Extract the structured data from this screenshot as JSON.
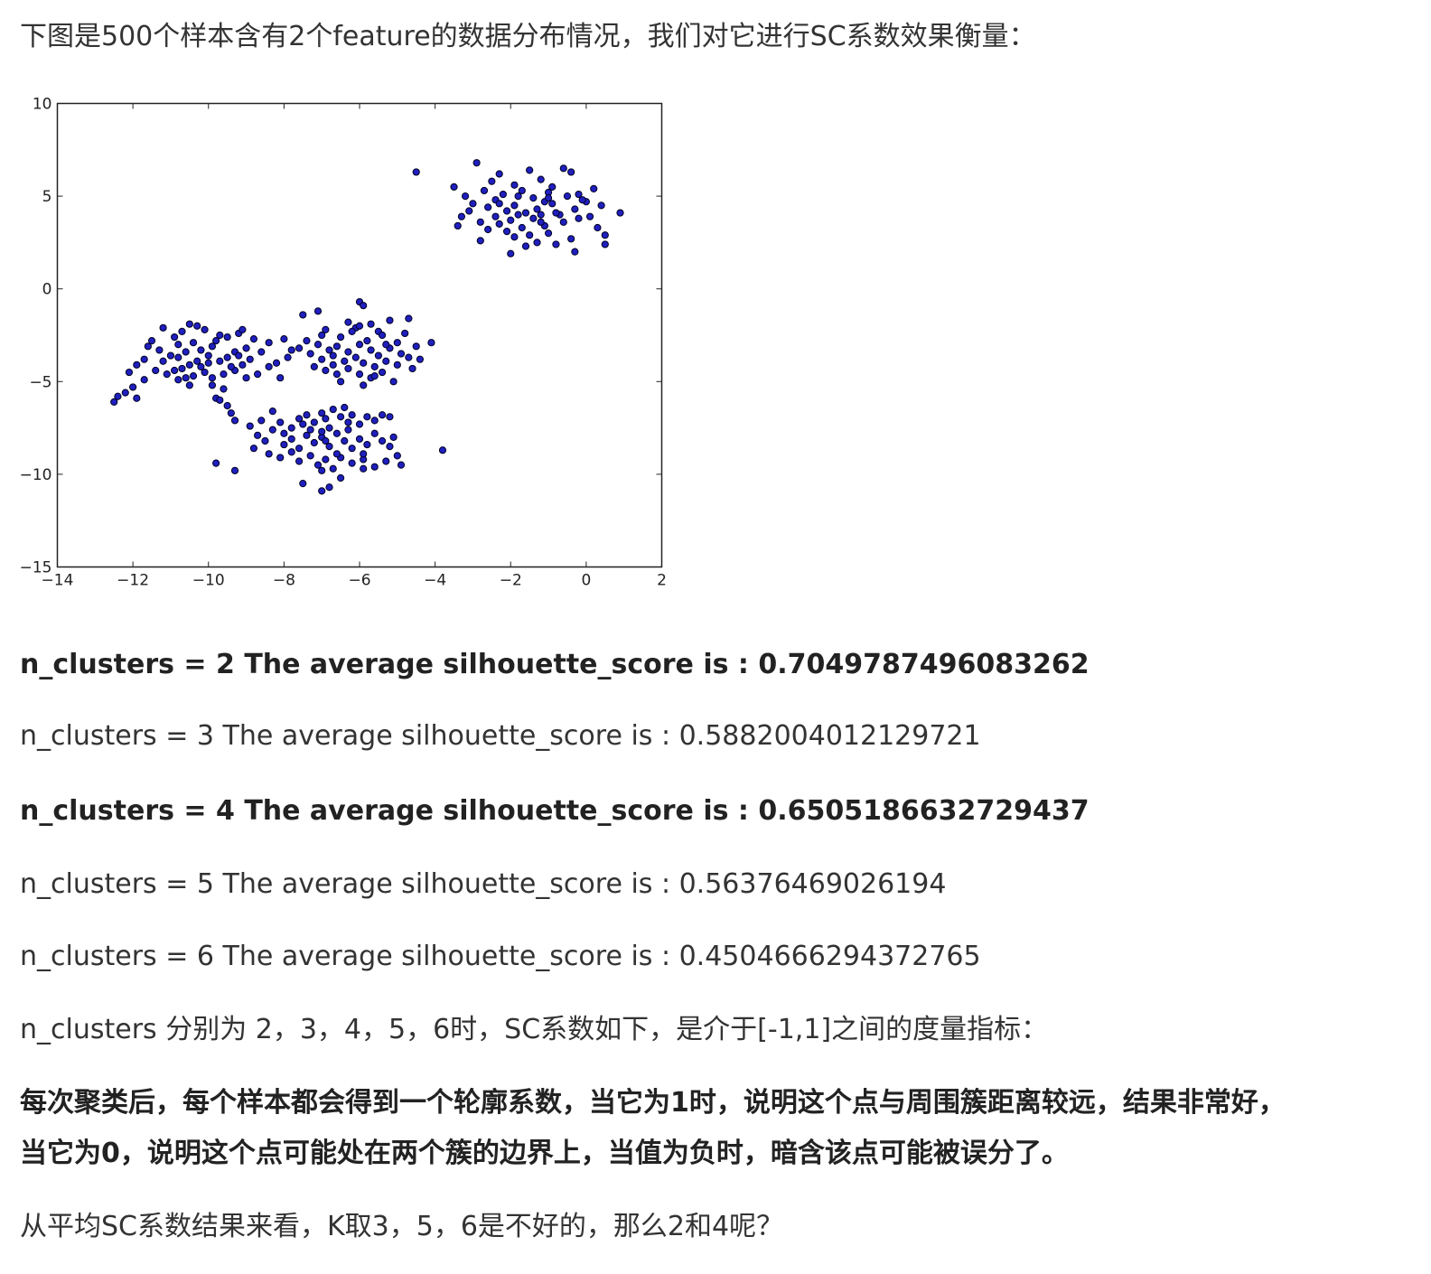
{
  "intro": "下图是500个样本含有2个feature的数据分布情况，我们对它进行SC系数效果衡量：",
  "chart_data": {
    "type": "scatter",
    "title": "",
    "xlabel": "",
    "ylabel": "",
    "xlim": [
      -14,
      2
    ],
    "ylim": [
      -15,
      10
    ],
    "xticks": [
      "−14",
      "−12",
      "−10",
      "−8",
      "−6",
      "−4",
      "−2",
      "0",
      "2"
    ],
    "yticks": [
      "10",
      "5",
      "0",
      "−5",
      "−10",
      "−15"
    ],
    "grid": false,
    "marker_color": "#1f1fbf",
    "series": [
      {
        "points": [
          [
            -4.5,
            6.3
          ],
          [
            -2.9,
            6.8
          ],
          [
            -2.3,
            6.2
          ],
          [
            -1.5,
            6.4
          ],
          [
            -0.6,
            6.5
          ],
          [
            -0.4,
            6.3
          ],
          [
            -2.5,
            5.8
          ],
          [
            -1.9,
            5.6
          ],
          [
            -1.2,
            5.9
          ],
          [
            -0.9,
            5.5
          ],
          [
            -0.2,
            5.1
          ],
          [
            0.2,
            5.4
          ],
          [
            -3.5,
            5.5
          ],
          [
            -3.2,
            5.0
          ],
          [
            -2.7,
            5.3
          ],
          [
            -2.2,
            5.1
          ],
          [
            -1.7,
            5.3
          ],
          [
            -1.4,
            4.9
          ],
          [
            -1.0,
            5.2
          ],
          [
            -0.5,
            5.0
          ],
          [
            0.0,
            4.7
          ],
          [
            -3.0,
            4.6
          ],
          [
            -2.6,
            4.4
          ],
          [
            -2.1,
            4.2
          ],
          [
            -1.9,
            4.5
          ],
          [
            -1.6,
            4.1
          ],
          [
            -1.3,
            4.3
          ],
          [
            -0.9,
            4.6
          ],
          [
            -0.7,
            4.0
          ],
          [
            -0.3,
            4.3
          ],
          [
            0.1,
            3.9
          ],
          [
            0.9,
            4.1
          ],
          [
            -3.3,
            3.9
          ],
          [
            -2.8,
            3.6
          ],
          [
            -2.3,
            3.5
          ],
          [
            -2.0,
            3.7
          ],
          [
            -1.7,
            3.3
          ],
          [
            -1.4,
            3.8
          ],
          [
            -1.1,
            3.4
          ],
          [
            -0.6,
            3.6
          ],
          [
            0.3,
            3.3
          ],
          [
            -3.4,
            3.4
          ],
          [
            -2.1,
            3.1
          ],
          [
            -1.5,
            2.9
          ],
          [
            -1.0,
            3.0
          ],
          [
            -0.4,
            2.7
          ],
          [
            0.5,
            2.9
          ],
          [
            -2.8,
            2.6
          ],
          [
            -1.9,
            2.8
          ],
          [
            -1.3,
            2.5
          ],
          [
            -0.8,
            2.4
          ],
          [
            -1.6,
            2.3
          ],
          [
            -2.0,
            1.9
          ],
          [
            -0.3,
            2.0
          ],
          [
            0.5,
            2.4
          ],
          [
            -2.4,
            4.8
          ],
          [
            -1.8,
            5.0
          ],
          [
            -1.1,
            4.7
          ],
          [
            -0.1,
            4.8
          ],
          [
            0.4,
            4.5
          ],
          [
            -2.4,
            3.9
          ],
          [
            -1.8,
            4.0
          ],
          [
            -1.2,
            4.0
          ],
          [
            -0.8,
            4.1
          ],
          [
            -2.3,
            4.6
          ],
          [
            -1.2,
            3.6
          ],
          [
            -0.2,
            3.8
          ],
          [
            -1.0,
            4.9
          ],
          [
            -3.1,
            4.2
          ],
          [
            -2.6,
            3.2
          ],
          [
            -6.0,
            -0.7
          ],
          [
            -5.9,
            -0.9
          ],
          [
            -7.1,
            -1.2
          ],
          [
            -7.5,
            -1.4
          ],
          [
            -6.3,
            -1.8
          ],
          [
            -6.1,
            -2.1
          ],
          [
            -5.7,
            -1.9
          ],
          [
            -5.2,
            -1.7
          ],
          [
            -4.7,
            -1.6
          ],
          [
            -5.5,
            -2.3
          ],
          [
            -6.9,
            -2.2
          ],
          [
            -6.5,
            -2.6
          ],
          [
            -6.2,
            -2.3
          ],
          [
            -5.8,
            -2.8
          ],
          [
            -5.4,
            -2.5
          ],
          [
            -5.0,
            -2.9
          ],
          [
            -4.8,
            -2.4
          ],
          [
            -7.4,
            -2.8
          ],
          [
            -7.1,
            -3.0
          ],
          [
            -6.8,
            -3.3
          ],
          [
            -6.6,
            -3.1
          ],
          [
            -6.3,
            -3.4
          ],
          [
            -6.0,
            -3.0
          ],
          [
            -5.7,
            -3.3
          ],
          [
            -5.5,
            -3.6
          ],
          [
            -5.2,
            -3.2
          ],
          [
            -4.9,
            -3.5
          ],
          [
            -4.5,
            -3.1
          ],
          [
            -4.1,
            -2.9
          ],
          [
            -7.6,
            -3.2
          ],
          [
            -7.3,
            -3.5
          ],
          [
            -7.0,
            -3.8
          ],
          [
            -6.7,
            -3.6
          ],
          [
            -6.4,
            -3.9
          ],
          [
            -6.1,
            -3.7
          ],
          [
            -5.9,
            -4.0
          ],
          [
            -5.6,
            -4.2
          ],
          [
            -5.3,
            -3.9
          ],
          [
            -5.0,
            -4.1
          ],
          [
            -4.7,
            -3.7
          ],
          [
            -4.4,
            -3.8
          ],
          [
            -7.2,
            -4.2
          ],
          [
            -6.9,
            -4.4
          ],
          [
            -6.6,
            -4.6
          ],
          [
            -6.3,
            -4.3
          ],
          [
            -6.0,
            -4.6
          ],
          [
            -5.7,
            -4.8
          ],
          [
            -5.4,
            -4.5
          ],
          [
            -5.1,
            -5.0
          ],
          [
            -5.9,
            -5.2
          ],
          [
            -6.5,
            -5.0
          ],
          [
            -8.1,
            -4.8
          ],
          [
            -7.8,
            -3.3
          ],
          [
            -8.0,
            -2.7
          ],
          [
            -5.3,
            -3.0
          ],
          [
            -7.0,
            -2.5
          ],
          [
            -6.0,
            -2.0
          ],
          [
            -4.6,
            -4.3
          ],
          [
            -5.6,
            -4.7
          ],
          [
            -6.7,
            -4.1
          ],
          [
            -8.4,
            -2.9
          ],
          [
            -8.6,
            -3.4
          ],
          [
            -8.9,
            -3.8
          ],
          [
            -9.2,
            -2.4
          ],
          [
            -9.5,
            -2.6
          ],
          [
            -9.8,
            -2.8
          ],
          [
            -10.1,
            -2.2
          ],
          [
            -10.3,
            -2.0
          ],
          [
            -10.5,
            -1.9
          ],
          [
            -10.7,
            -2.3
          ],
          [
            -10.9,
            -2.6
          ],
          [
            -11.2,
            -2.1
          ],
          [
            -11.5,
            -2.8
          ],
          [
            -11.6,
            -3.1
          ],
          [
            -9.9,
            -3.1
          ],
          [
            -10.2,
            -3.3
          ],
          [
            -10.4,
            -2.9
          ],
          [
            -10.6,
            -3.4
          ],
          [
            -10.8,
            -3.0
          ],
          [
            -11.0,
            -3.6
          ],
          [
            -11.3,
            -3.3
          ],
          [
            -9.3,
            -3.4
          ],
          [
            -9.5,
            -3.7
          ],
          [
            -9.7,
            -3.9
          ],
          [
            -10.0,
            -3.6
          ],
          [
            -10.3,
            -3.9
          ],
          [
            -10.5,
            -4.1
          ],
          [
            -10.7,
            -4.3
          ],
          [
            -10.9,
            -4.4
          ],
          [
            -11.1,
            -4.6
          ],
          [
            -11.4,
            -4.4
          ],
          [
            -9.1,
            -4.1
          ],
          [
            -9.3,
            -4.4
          ],
          [
            -9.6,
            -4.6
          ],
          [
            -9.9,
            -4.8
          ],
          [
            -10.1,
            -4.5
          ],
          [
            -10.4,
            -4.7
          ],
          [
            -10.6,
            -4.8
          ],
          [
            -10.8,
            -4.9
          ],
          [
            -11.2,
            -3.9
          ],
          [
            -11.7,
            -3.8
          ],
          [
            -11.9,
            -4.1
          ],
          [
            -12.1,
            -4.5
          ],
          [
            -11.7,
            -4.9
          ],
          [
            -12.0,
            -5.3
          ],
          [
            -12.2,
            -5.6
          ],
          [
            -12.4,
            -5.8
          ],
          [
            -11.9,
            -5.9
          ],
          [
            -12.5,
            -6.1
          ],
          [
            -9.9,
            -5.2
          ],
          [
            -9.6,
            -5.4
          ],
          [
            -9.8,
            -5.9
          ],
          [
            -9.5,
            -6.3
          ],
          [
            -9.4,
            -6.7
          ],
          [
            -9.7,
            -6.0
          ],
          [
            -8.7,
            -4.6
          ],
          [
            -8.4,
            -4.2
          ],
          [
            -8.2,
            -4.0
          ],
          [
            -9.0,
            -3.2
          ],
          [
            -8.8,
            -2.7
          ],
          [
            -9.1,
            -2.2
          ],
          [
            -9.7,
            -2.5
          ],
          [
            -10.0,
            -4.0
          ],
          [
            -10.2,
            -4.2
          ],
          [
            -10.8,
            -3.7
          ],
          [
            -7.9,
            -3.7
          ],
          [
            -9.2,
            -3.6
          ],
          [
            -9.4,
            -4.2
          ],
          [
            -9.0,
            -4.8
          ],
          [
            -10.5,
            -5.2
          ],
          [
            -9.3,
            -7.1
          ],
          [
            -8.9,
            -7.4
          ],
          [
            -8.6,
            -7.1
          ],
          [
            -8.3,
            -6.6
          ],
          [
            -8.1,
            -7.2
          ],
          [
            -8.0,
            -7.8
          ],
          [
            -7.8,
            -7.5
          ],
          [
            -7.6,
            -7.0
          ],
          [
            -7.4,
            -6.8
          ],
          [
            -7.2,
            -7.2
          ],
          [
            -7.0,
            -6.7
          ],
          [
            -6.9,
            -7.0
          ],
          [
            -6.7,
            -6.5
          ],
          [
            -6.5,
            -6.9
          ],
          [
            -6.4,
            -6.4
          ],
          [
            -6.2,
            -6.8
          ],
          [
            -6.0,
            -7.3
          ],
          [
            -5.8,
            -6.9
          ],
          [
            -5.6,
            -7.1
          ],
          [
            -5.4,
            -6.8
          ],
          [
            -5.2,
            -6.9
          ],
          [
            -8.7,
            -7.9
          ],
          [
            -8.5,
            -8.2
          ],
          [
            -8.3,
            -7.6
          ],
          [
            -8.0,
            -8.4
          ],
          [
            -7.8,
            -8.1
          ],
          [
            -7.6,
            -8.6
          ],
          [
            -7.4,
            -7.9
          ],
          [
            -7.2,
            -8.3
          ],
          [
            -7.0,
            -8.0
          ],
          [
            -6.8,
            -8.5
          ],
          [
            -6.6,
            -7.8
          ],
          [
            -6.4,
            -8.2
          ],
          [
            -6.2,
            -8.6
          ],
          [
            -6.0,
            -8.1
          ],
          [
            -5.8,
            -8.4
          ],
          [
            -5.6,
            -7.8
          ],
          [
            -5.4,
            -8.2
          ],
          [
            -5.2,
            -8.5
          ],
          [
            -5.1,
            -8.0
          ],
          [
            -8.4,
            -8.9
          ],
          [
            -8.1,
            -9.1
          ],
          [
            -7.8,
            -8.8
          ],
          [
            -7.6,
            -9.3
          ],
          [
            -7.3,
            -9.0
          ],
          [
            -7.1,
            -9.5
          ],
          [
            -6.9,
            -9.2
          ],
          [
            -6.7,
            -9.7
          ],
          [
            -6.5,
            -9.1
          ],
          [
            -6.2,
            -9.4
          ],
          [
            -5.9,
            -9.2
          ],
          [
            -5.6,
            -9.6
          ],
          [
            -5.3,
            -9.3
          ],
          [
            -5.0,
            -9.0
          ],
          [
            -4.9,
            -9.5
          ],
          [
            -9.8,
            -9.4
          ],
          [
            -9.3,
            -9.8
          ],
          [
            -7.0,
            -9.8
          ],
          [
            -7.5,
            -10.5
          ],
          [
            -7.0,
            -10.9
          ],
          [
            -6.8,
            -10.7
          ],
          [
            -6.5,
            -10.2
          ],
          [
            -7.3,
            -7.6
          ],
          [
            -6.8,
            -7.5
          ],
          [
            -6.3,
            -7.6
          ],
          [
            -7.0,
            -7.7
          ],
          [
            -6.6,
            -8.9
          ],
          [
            -5.9,
            -9.7
          ],
          [
            -3.8,
            -8.7
          ],
          [
            -7.5,
            -7.3
          ],
          [
            -6.9,
            -8.2
          ],
          [
            -5.9,
            -8.9
          ],
          [
            -8.8,
            -8.6
          ],
          [
            -6.3,
            -7.2
          ]
        ]
      }
    ]
  },
  "results": [
    {
      "text": "n_clusters = 2 The average silhouette_score is : 0.7049787496083262",
      "bold": true
    },
    {
      "text": "n_clusters = 3 The average silhouette_score is : 0.5882004012129721",
      "bold": false
    },
    {
      "text": "n_clusters = 4 The average silhouette_score is : 0.6505186632729437",
      "bold": true
    },
    {
      "text": "n_clusters = 5 The average silhouette_score is : 0.56376469026194",
      "bold": false
    },
    {
      "text": "n_clusters = 6 The average silhouette_score is : 0.4504666294372765",
      "bold": false
    }
  ],
  "para_range": "n_clusters 分别为 2，3，4，5，6时，SC系数如下，是介于[-1,1]之间的度量指标：",
  "para_explain_1": "每次聚类后，每个样本都会得到一个轮廓系数，当它为1时，说明这个点与周围簇距离较远，结果非常好，",
  "para_explain_2": "当它为0，说明这个点可能处在两个簇的边界上，当值为负时，暗含该点可能被误分了。",
  "para_conclusion": "从平均SC系数结果来看，K取3，5，6是不好的，那么2和4呢？"
}
